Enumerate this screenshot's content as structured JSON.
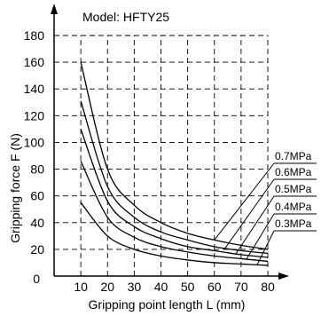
{
  "chart_data": {
    "type": "line",
    "title": "Model: HFTY25",
    "xlabel": "Gripping point length L (mm)",
    "ylabel": "Gripping force F (N)",
    "xlim": [
      0,
      80
    ],
    "ylim": [
      0,
      180
    ],
    "x_ticks": [
      10,
      20,
      30,
      40,
      50,
      60,
      70,
      80
    ],
    "y_ticks": [
      0,
      20,
      40,
      60,
      80,
      100,
      120,
      140,
      160,
      180
    ],
    "grid": true,
    "grid_style": "dashed",
    "x": [
      10,
      20,
      30,
      40,
      50,
      60,
      70,
      80
    ],
    "series": [
      {
        "name": "0.7MPa",
        "values": [
          160,
          80,
          53,
          40,
          32,
          27,
          23,
          20
        ]
      },
      {
        "name": "0.6MPa",
        "values": [
          131,
          67,
          44,
          33,
          27,
          22,
          19,
          17
        ]
      },
      {
        "name": "0.5MPa",
        "values": [
          110,
          56,
          37,
          28,
          22,
          19,
          16,
          14
        ]
      },
      {
        "name": "0.4MPa",
        "values": [
          86,
          44,
          29,
          22,
          18,
          15,
          13,
          11
        ]
      },
      {
        "name": "0.3MPa",
        "values": [
          55,
          30,
          20,
          15,
          12,
          10,
          9,
          8
        ]
      }
    ],
    "line_color": "#000000",
    "legend": "leader-line labels at right"
  }
}
